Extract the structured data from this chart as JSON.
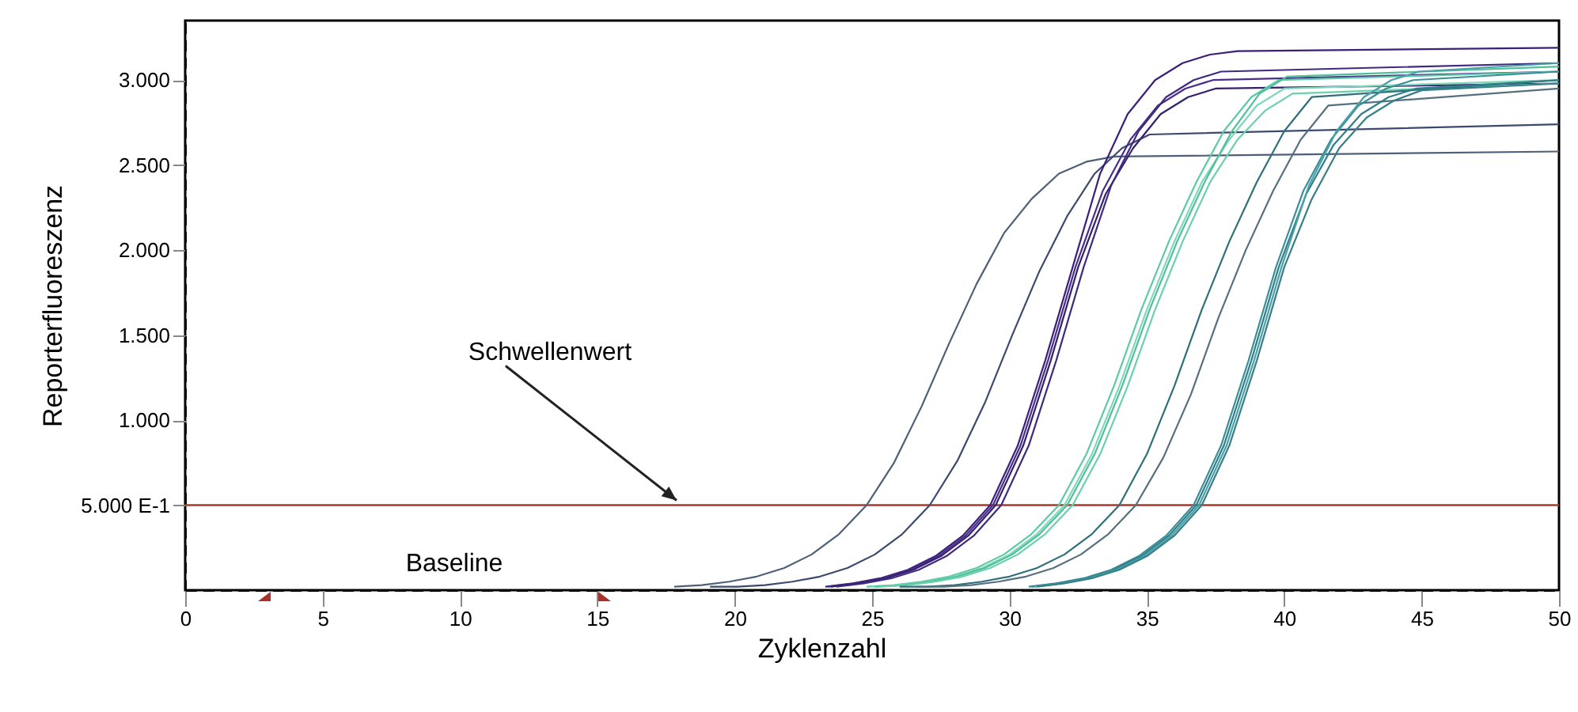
{
  "chart_data": {
    "type": "line",
    "xlabel": "Zyklenzahl",
    "ylabel": "Reporterfluoreszenz",
    "xlim": [
      0,
      50
    ],
    "ylim": [
      0,
      3350
    ],
    "xticks": [
      0,
      5,
      10,
      15,
      20,
      25,
      30,
      35,
      40,
      45,
      50
    ],
    "yticks": [
      {
        "value": 500,
        "label": "5.000 E-1"
      },
      {
        "value": 1000,
        "label": "1.000"
      },
      {
        "value": 1500,
        "label": "1.500"
      },
      {
        "value": 2000,
        "label": "2.000"
      },
      {
        "value": 2500,
        "label": "2.500"
      },
      {
        "value": 3000,
        "label": "3.000"
      }
    ],
    "grid": false,
    "marker": "none",
    "line_style": "solid",
    "ref_lines": [
      {
        "axis": "y",
        "value": 500,
        "color": "#a8392f"
      }
    ],
    "annotations": [
      {
        "text": "Schwellenwert",
        "x": 18,
        "y": 500
      },
      "Baseline"
    ],
    "series": [
      {
        "color": "#4e6078",
        "x": [
          17.8,
          18.8,
          19.8,
          20.8,
          21.8,
          22.8,
          23.8,
          24.8,
          25.8,
          26.8,
          27.8,
          28.8,
          29.8,
          30.8,
          31.8,
          32.8,
          33.8,
          50
        ],
        "values": [
          20,
          30,
          50,
          80,
          130,
          210,
          330,
          500,
          750,
          1080,
          1450,
          1800,
          2100,
          2300,
          2450,
          2520,
          2550,
          2580
        ]
      },
      {
        "color": "#3b4a6e",
        "x": [
          19.1,
          20.1,
          21.1,
          22.1,
          23.1,
          24.1,
          25.1,
          26.1,
          27.1,
          28.1,
          29.1,
          30.1,
          31.1,
          32.1,
          33.1,
          34.1,
          35.1,
          50
        ],
        "values": [
          20,
          20,
          30,
          50,
          80,
          130,
          210,
          330,
          500,
          760,
          1100,
          1500,
          1880,
          2200,
          2450,
          2600,
          2680,
          2740
        ]
      },
      {
        "color": "#3b1f7a",
        "x": [
          23.3,
          24.3,
          25.3,
          26.3,
          27.3,
          28.3,
          29.3,
          30.3,
          31.3,
          32.3,
          33.3,
          34.3,
          35.3,
          36.3,
          37.3,
          38.3,
          50
        ],
        "values": [
          20,
          40,
          70,
          120,
          200,
          320,
          500,
          850,
          1350,
          1900,
          2450,
          2800,
          3000,
          3100,
          3150,
          3170,
          3190
        ]
      },
      {
        "color": "#4a2f8a",
        "x": [
          23.4,
          24.4,
          25.4,
          26.4,
          27.4,
          28.4,
          29.4,
          30.4,
          31.4,
          32.4,
          33.4,
          34.4,
          35.4,
          36.4,
          37.4,
          50
        ],
        "values": [
          20,
          40,
          70,
          120,
          200,
          320,
          500,
          850,
          1350,
          1900,
          2350,
          2650,
          2850,
          2950,
          3000,
          3050
        ]
      },
      {
        "color": "#35206e",
        "x": [
          23.5,
          24.5,
          25.5,
          26.5,
          27.5,
          28.5,
          29.5,
          30.5,
          31.5,
          32.5,
          33.5,
          34.5,
          35.5,
          36.5,
          37.5,
          50
        ],
        "values": [
          20,
          40,
          70,
          120,
          200,
          320,
          500,
          850,
          1350,
          1900,
          2330,
          2600,
          2800,
          2900,
          2950,
          2980
        ]
      },
      {
        "color": "#3f2a80",
        "x": [
          23.7,
          24.7,
          25.7,
          26.7,
          27.7,
          28.7,
          29.7,
          30.7,
          31.7,
          32.7,
          33.7,
          34.7,
          35.7,
          36.7,
          37.7,
          50
        ],
        "values": [
          20,
          40,
          70,
          120,
          200,
          320,
          500,
          850,
          1350,
          1900,
          2380,
          2700,
          2900,
          3000,
          3050,
          3100
        ]
      },
      {
        "color": "#5cc9a7",
        "x": [
          24.8,
          25.8,
          26.8,
          27.8,
          28.8,
          29.8,
          30.8,
          31.8,
          32.8,
          33.8,
          34.8,
          35.8,
          36.8,
          37.8,
          38.8,
          39.8,
          50
        ],
        "values": [
          20,
          30,
          50,
          80,
          130,
          210,
          330,
          500,
          800,
          1200,
          1650,
          2050,
          2400,
          2700,
          2900,
          3000,
          3050
        ]
      },
      {
        "color": "#7fd9b8",
        "x": [
          25,
          26,
          27,
          28,
          29,
          30,
          31,
          32,
          33,
          34,
          35,
          36,
          37,
          38,
          39,
          40,
          50
        ],
        "values": [
          20,
          30,
          50,
          80,
          130,
          210,
          330,
          500,
          800,
          1200,
          1650,
          2050,
          2400,
          2650,
          2850,
          2950,
          3000
        ]
      },
      {
        "color": "#4fbf9a",
        "x": [
          25.1,
          26.1,
          27.1,
          28.1,
          29.1,
          30.1,
          31.1,
          32.1,
          33.1,
          34.1,
          35.1,
          36.1,
          37.1,
          38.1,
          39.1,
          40.1,
          50
        ],
        "values": [
          20,
          30,
          50,
          80,
          130,
          210,
          330,
          500,
          800,
          1200,
          1650,
          2050,
          2400,
          2700,
          2920,
          3020,
          3080
        ]
      },
      {
        "color": "#6ad0ae",
        "x": [
          25.3,
          26.3,
          27.3,
          28.3,
          29.3,
          30.3,
          31.3,
          32.3,
          33.3,
          34.3,
          35.3,
          36.3,
          37.3,
          38.3,
          39.3,
          40.3,
          50
        ],
        "values": [
          20,
          30,
          50,
          80,
          130,
          210,
          330,
          500,
          800,
          1200,
          1650,
          2050,
          2400,
          2650,
          2820,
          2920,
          2980
        ]
      },
      {
        "color": "#2f6f7a",
        "x": [
          26,
          27,
          28,
          29,
          30,
          31,
          32,
          33,
          34,
          35,
          36,
          37,
          38,
          39,
          40,
          41,
          50
        ],
        "values": [
          20,
          20,
          30,
          50,
          80,
          130,
          210,
          330,
          500,
          800,
          1200,
          1650,
          2050,
          2400,
          2700,
          2900,
          3000
        ]
      },
      {
        "color": "#55707e",
        "x": [
          26.6,
          27.6,
          28.6,
          29.6,
          30.6,
          31.6,
          32.6,
          33.6,
          34.6,
          35.6,
          36.6,
          37.6,
          38.6,
          39.6,
          40.6,
          41.6,
          50
        ],
        "values": [
          20,
          20,
          30,
          50,
          80,
          130,
          210,
          330,
          500,
          780,
          1150,
          1600,
          2000,
          2350,
          2650,
          2850,
          2950
        ]
      },
      {
        "color": "#3b8f99",
        "x": [
          30.7,
          31.7,
          32.7,
          33.7,
          34.7,
          35.7,
          36.7,
          37.7,
          38.7,
          39.7,
          40.7,
          41.7,
          42.7,
          43.7,
          44.7,
          50
        ],
        "values": [
          20,
          40,
          70,
          120,
          200,
          320,
          500,
          850,
          1350,
          1900,
          2350,
          2650,
          2850,
          2950,
          3000,
          3050
        ]
      },
      {
        "color": "#2f7f8a",
        "x": [
          30.8,
          31.8,
          32.8,
          33.8,
          34.8,
          35.8,
          36.8,
          37.8,
          38.8,
          39.8,
          40.8,
          41.8,
          42.8,
          43.8,
          44.8,
          50
        ],
        "values": [
          20,
          40,
          70,
          120,
          200,
          320,
          500,
          850,
          1350,
          1900,
          2330,
          2620,
          2800,
          2900,
          2950,
          3000
        ]
      },
      {
        "color": "#4aa0a8",
        "x": [
          30.9,
          31.9,
          32.9,
          33.9,
          34.9,
          35.9,
          36.9,
          37.9,
          38.9,
          39.9,
          40.9,
          41.9,
          42.9,
          43.9,
          44.9,
          50
        ],
        "values": [
          20,
          40,
          70,
          120,
          200,
          320,
          500,
          850,
          1350,
          1900,
          2380,
          2700,
          2900,
          3000,
          3050,
          3100
        ]
      },
      {
        "color": "#357f88",
        "x": [
          31,
          32,
          33,
          34,
          35,
          36,
          37,
          38,
          39,
          40,
          41,
          42,
          43,
          44,
          45,
          50
        ],
        "values": [
          20,
          40,
          70,
          120,
          200,
          320,
          500,
          850,
          1350,
          1900,
          2300,
          2600,
          2780,
          2880,
          2940,
          2980
        ]
      }
    ]
  }
}
